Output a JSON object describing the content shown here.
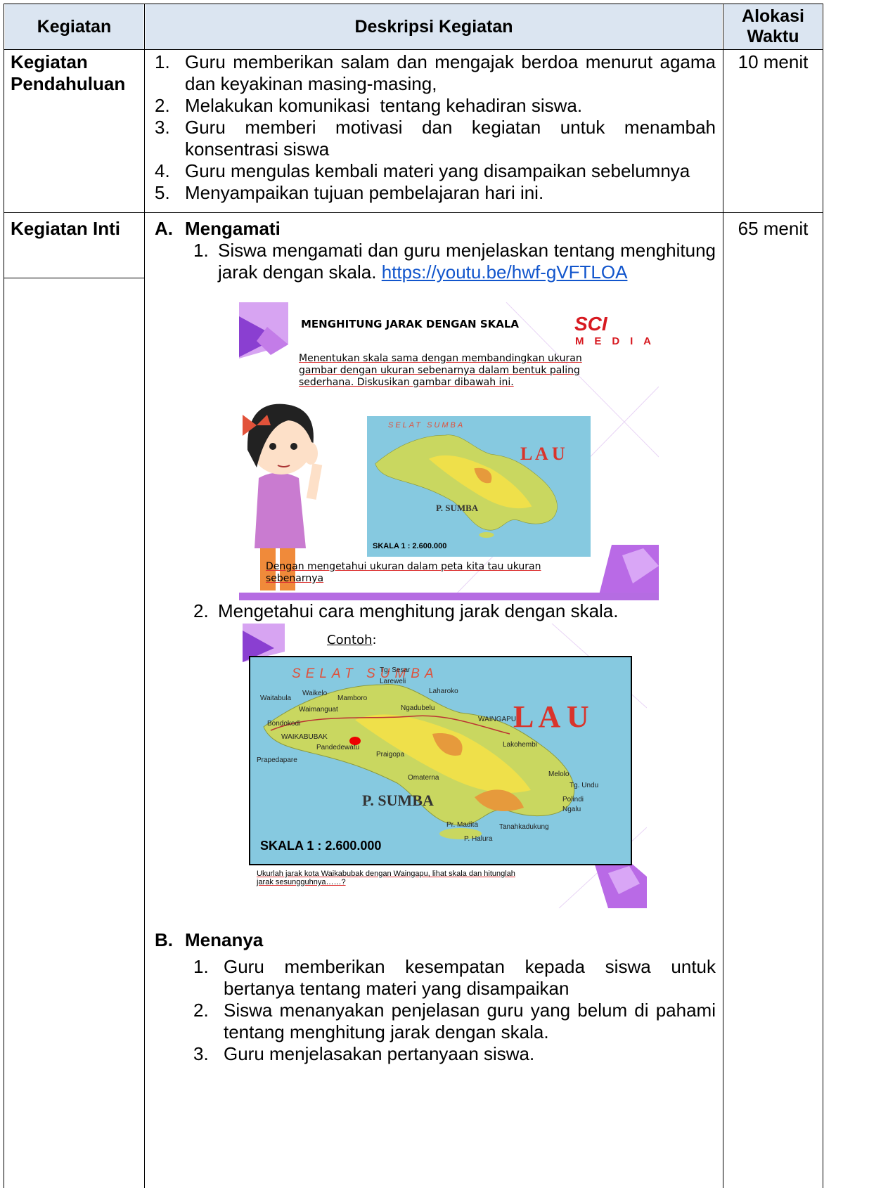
{
  "table": {
    "headers": [
      "Kegiatan",
      "Deskripsi Kegiatan",
      "Alokasi Waktu"
    ],
    "rows": [
      {
        "activity": "Kegiatan Pendahuluan",
        "items": [
          {
            "number": "1.",
            "text": "Guru memberikan salam dan mengajak berdoa menurut agama dan keyakinan masing-masing,"
          },
          {
            "number": "2.",
            "text": "Melakukan komunikasi  tentang kehadiran siswa."
          },
          {
            "number": "3.",
            "text": "Guru memberi motivasi dan kegiatan untuk menambah konsentrasi siswa"
          },
          {
            "number": "4.",
            "text": "Guru mengulas kembali materi yang disampaikan sebelumnya"
          },
          {
            "number": "5.",
            "text": "Menyampaikan tujuan pembelajaran hari ini."
          }
        ],
        "time": "10 menit"
      },
      {
        "activity": "Kegiatan Inti",
        "sections": [
          {
            "label": "A.",
            "title": "Mengamati",
            "items": [
              {
                "number": "1.",
                "text": "Siswa mengamati dan guru menjelaskan tentang menghitung jarak dengan skala.",
                "link": "https://youtu.be/hwf-gVFTLOA"
              },
              {
                "number": "2.",
                "text": "Mengetahui cara menghitung jarak dengan skala."
              }
            ]
          },
          {
            "label": "B.",
            "title": "Menanya",
            "items": [
              {
                "number": "1.",
                "text": "Guru memberikan kesempatan kepada siswa untuk bertanya tentang materi yang disampaikan"
              },
              {
                "number": "2.",
                "text": "Siswa menanyakan penjelasan guru yang belum di pahami tentang menghitung jarak dengan skala."
              },
              {
                "number": "3.",
                "text": "Guru menjelasakan pertanyaan siswa."
              }
            ]
          }
        ],
        "time": "65 menit"
      }
    ]
  },
  "slides": [
    {
      "title": "MENGHITUNG JARAK DENGAN SKALA",
      "logo": {
        "brand": "SCI",
        "sub": "MEDIA"
      },
      "text": "Menentukan skala sama dengan membandingkan ukuran gambar dengan ukuran sebenarnya dalam bentuk paling sederhana. Diskusikan gambar dibawah ini.",
      "map": {
        "sea": "SELAT SUMBA",
        "ocean": "L A U",
        "island": "P. SUMBA",
        "scale": "SKALA 1 : 2.600.000"
      },
      "footer": "Dengan mengetahui ukuran dalam peta kita tau ukuran sebenarnya"
    },
    {
      "label": "Contoh",
      "label_suffix": ":",
      "map": {
        "sea": "SELAT SUMBA",
        "ocean": "L A U",
        "island": "P. SUMBA",
        "scale": "SKALA 1 : 2.600.000",
        "places": [
          "Tg. Sesar",
          "Lareweli",
          "Waikelo",
          "Mamboro",
          "Laharoko",
          "Waitabula",
          "Waimanguat",
          "Ngadubelu",
          "WAINGAPU",
          "Bondokodi",
          "WAIKABUBAK",
          "Pandedewatu",
          "Lakohembi",
          "Praigopa",
          "Prapedapare",
          "Omaterna",
          "Melolo",
          "Tg. Undu",
          "Polindi",
          "Ngalu",
          "Pr. Madita",
          "Tanahkadukung",
          "P. Halura"
        ]
      },
      "caption": "Ukurlah jarak kota Waikabubak dengan Waingapu, lihat skala dan hitunglah jarak sesungguhnya……?"
    }
  ]
}
